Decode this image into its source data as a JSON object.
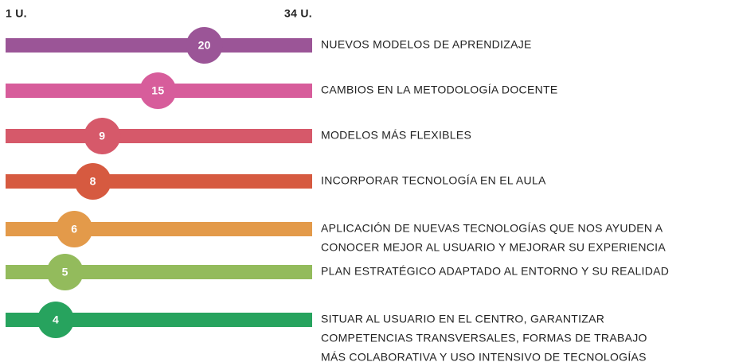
{
  "chart_data": {
    "type": "dot",
    "xlim": [
      1,
      34
    ],
    "xticks": [
      {
        "value": 1,
        "label": "1 U."
      },
      {
        "value": 34,
        "label": "34 U."
      }
    ],
    "categories": [
      [
        "NUEVOS MODELOS DE APRENDIZAJE"
      ],
      [
        "CAMBIOS EN LA METODOLOGÍA DOCENTE"
      ],
      [
        "MODELOS MÁS FLEXIBLES"
      ],
      [
        "INCORPORAR TECNOLOGÍA EN EL AULA"
      ],
      [
        "APLICACIÓN DE NUEVAS TECNOLOGÍAS QUE NOS AYUDEN A",
        "CONOCER MEJOR AL USUARIO Y MEJORAR SU EXPERIENCIA"
      ],
      [
        "PLAN ESTRATÉGICO ADAPTADO AL ENTORNO Y SU REALIDAD"
      ],
      [
        "SITUAR AL USUARIO EN EL CENTRO, GARANTIZAR",
        "COMPETENCIAS TRANSVERSALES, FORMAS DE TRABAJO",
        "MÁS COLABORATIVA Y USO INTENSIVO DE TECNOLOGÍAS"
      ]
    ],
    "values": [
      20,
      15,
      9,
      8,
      6,
      5,
      4
    ],
    "colors": [
      "#9b5597",
      "#d75d9b",
      "#d6596a",
      "#d65a40",
      "#e39a4a",
      "#93bb5c",
      "#27a35e"
    ]
  }
}
